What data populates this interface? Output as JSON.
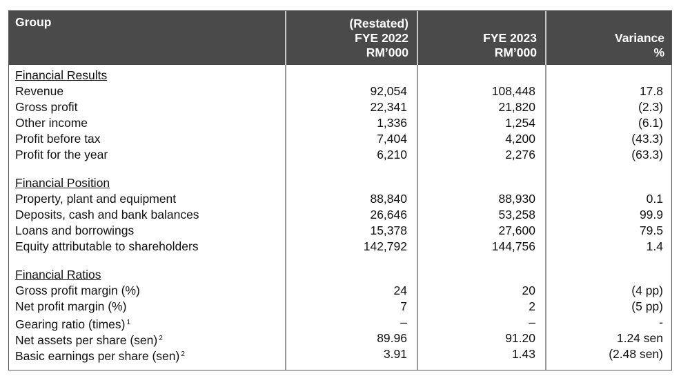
{
  "header": {
    "group": "Group",
    "col1": [
      "(Restated)",
      "FYE 2022",
      "RM’000"
    ],
    "col2": [
      "FYE 2023",
      "RM’000"
    ],
    "col3": [
      "Variance",
      "%"
    ]
  },
  "sections": [
    {
      "title": "Financial Results",
      "rows": [
        {
          "label": "Revenue",
          "sup": "",
          "fye2022": "92,054",
          "fye2023": "108,448",
          "variance": "17.8"
        },
        {
          "label": "Gross profit",
          "sup": "",
          "fye2022": "22,341",
          "fye2023": "21,820",
          "variance": "(2.3)"
        },
        {
          "label": "Other income",
          "sup": "",
          "fye2022": "1,336",
          "fye2023": "1,254",
          "variance": "(6.1)"
        },
        {
          "label": "Profit before tax",
          "sup": "",
          "fye2022": "7,404",
          "fye2023": "4,200",
          "variance": "(43.3)"
        },
        {
          "label": "Profit for the year",
          "sup": "",
          "fye2022": "6,210",
          "fye2023": "2,276",
          "variance": "(63.3)"
        }
      ]
    },
    {
      "title": "Financial Position",
      "rows": [
        {
          "label": "Property, plant and equipment",
          "sup": "",
          "fye2022": "88,840",
          "fye2023": "88,930",
          "variance": "0.1"
        },
        {
          "label": "Deposits, cash and bank balances",
          "sup": "",
          "fye2022": "26,646",
          "fye2023": "53,258",
          "variance": "99.9"
        },
        {
          "label": "Loans and borrowings",
          "sup": "",
          "fye2022": "15,378",
          "fye2023": "27,600",
          "variance": "79.5"
        },
        {
          "label": "Equity attributable to shareholders",
          "sup": "",
          "fye2022": "142,792",
          "fye2023": "144,756",
          "variance": "1.4"
        }
      ]
    },
    {
      "title": "Financial Ratios",
      "rows": [
        {
          "label": "Gross profit margin (%)",
          "sup": "",
          "fye2022": "24",
          "fye2023": "20",
          "variance": "(4 pp)"
        },
        {
          "label": "Net profit margin (%)",
          "sup": "",
          "fye2022": "7",
          "fye2023": "2",
          "variance": "(5 pp)"
        },
        {
          "label": "Gearing ratio (times)",
          "sup": "1",
          "fye2022": "–",
          "fye2023": "–",
          "variance": "-"
        },
        {
          "label": "Net assets per share (sen)",
          "sup": "2",
          "fye2022": "89.96",
          "fye2023": "91.20",
          "variance": "1.24 sen"
        },
        {
          "label": "Basic earnings per share (sen)",
          "sup": "2",
          "fye2022": "3.91",
          "fye2023": "1.43",
          "variance": "(2.48 sen)"
        }
      ]
    }
  ]
}
